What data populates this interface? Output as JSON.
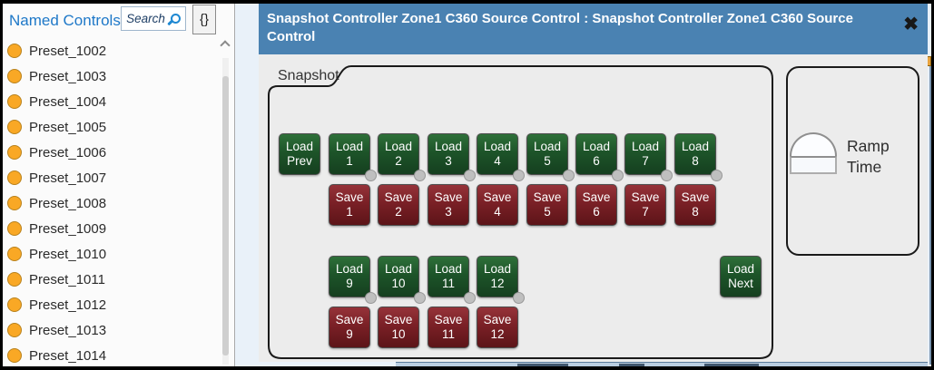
{
  "sidebar": {
    "title": "Named Controls",
    "search_placeholder": "Search",
    "braces_label": "{}",
    "items": [
      "Preset_1002",
      "Preset_1003",
      "Preset_1004",
      "Preset_1005",
      "Preset_1006",
      "Preset_1007",
      "Preset_1008",
      "Preset_1009",
      "Preset_1010",
      "Preset_1011",
      "Preset_1012",
      "Preset_1013",
      "Preset_1014"
    ]
  },
  "dialog": {
    "title": "Snapshot Controller Zone1 C360 Source Control : Snapshot Controller Zone1 C360 Source Control",
    "close_glyph": "✖",
    "snapshot": {
      "tab_label": "Snapshot",
      "load_word": "Load",
      "save_word": "Save",
      "prev_word": "Prev",
      "next_word": "Next",
      "slots": [
        "1",
        "2",
        "3",
        "4",
        "5",
        "6",
        "7",
        "8",
        "9",
        "10",
        "11",
        "12"
      ]
    },
    "ramp": {
      "line1": "Ramp",
      "line2": "Time"
    }
  },
  "colors": {
    "titlebar": "#4a82b2",
    "load_button": "#1d5429",
    "save_button": "#7a2026",
    "led": "#bfbfbf",
    "accent_blue": "#1e78c8",
    "preset_dot": "#f9a825"
  }
}
